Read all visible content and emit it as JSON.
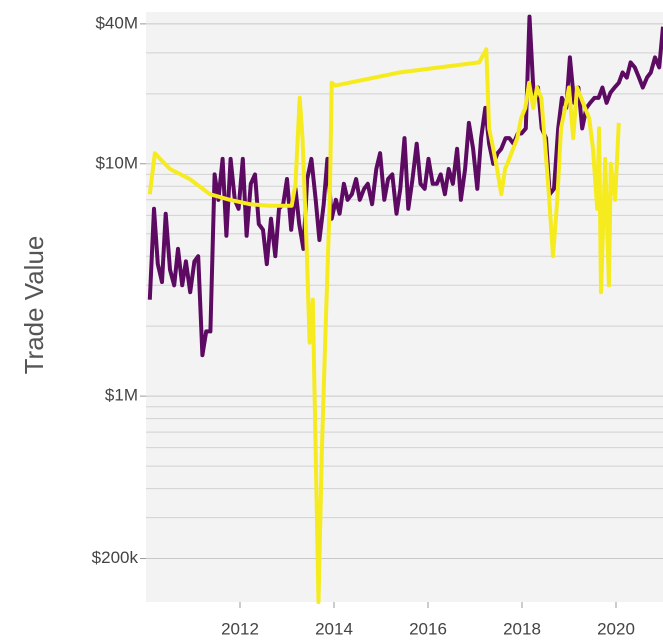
{
  "chart_data": {
    "type": "line",
    "y_label": "Trade Value",
    "log_scale": true,
    "grid": true,
    "xlim": [
      2010,
      2021
    ],
    "xticks": [
      2012,
      2014,
      2016,
      2018,
      2020
    ],
    "ylim": [
      130000,
      45000000
    ],
    "yticks": [
      {
        "value": 200000,
        "label": "$200k"
      },
      {
        "value": 1000000,
        "label": "$1M"
      },
      {
        "value": 10000000,
        "label": "$10M"
      },
      {
        "value": 40000000,
        "label": "$40M"
      }
    ],
    "minor_yticks": [
      300000,
      400000,
      500000,
      600000,
      700000,
      800000,
      900000,
      2000000,
      3000000,
      4000000,
      5000000,
      6000000,
      7000000,
      8000000,
      9000000,
      20000000,
      30000000
    ],
    "series": [
      {
        "color": "#5c0a62",
        "x": [
          2010.08,
          2010.17,
          2010.25,
          2010.34,
          2010.42,
          2010.51,
          2010.6,
          2010.68,
          2010.77,
          2010.85,
          2010.94,
          2011.03,
          2011.11,
          2011.2,
          2011.28,
          2011.37,
          2011.46,
          2011.54,
          2011.63,
          2011.71,
          2011.8,
          2011.89,
          2011.97,
          2012.06,
          2012.14,
          2012.23,
          2012.32,
          2012.4,
          2012.49,
          2012.57,
          2012.66,
          2012.75,
          2012.83,
          2012.92,
          2013.0,
          2013.09,
          2013.18,
          2013.26,
          2013.35,
          2013.43,
          2013.52,
          2013.61,
          2013.69,
          2013.78,
          2013.86,
          2013.95,
          2014.04,
          2014.12,
          2014.21,
          2014.29,
          2014.38,
          2014.47,
          2014.55,
          2014.64,
          2014.72,
          2014.81,
          2014.9,
          2014.98,
          2015.07,
          2015.15,
          2015.24,
          2015.33,
          2015.41,
          2015.5,
          2015.58,
          2015.67,
          2015.76,
          2015.84,
          2015.93,
          2016.01,
          2016.1,
          2016.19,
          2016.27,
          2016.36,
          2016.44,
          2016.53,
          2016.62,
          2016.7,
          2016.79,
          2016.87,
          2016.96,
          2017.05,
          2017.13,
          2017.22,
          2017.3,
          2017.39,
          2017.48,
          2017.56,
          2017.65,
          2017.73,
          2017.82,
          2017.91,
          2017.99,
          2018.08,
          2018.16,
          2018.25,
          2018.34,
          2018.42,
          2018.51,
          2018.59,
          2018.68,
          2018.77,
          2018.85,
          2018.94,
          2019.02,
          2019.11,
          2019.2,
          2019.28,
          2019.37,
          2019.45,
          2019.54,
          2019.63,
          2019.71,
          2019.8,
          2019.88,
          2019.97,
          2020.06,
          2020.14,
          2020.23,
          2020.31,
          2020.4,
          2020.49,
          2020.57,
          2020.66,
          2020.74,
          2020.83,
          2020.92,
          2021.0
        ],
        "values": [
          2600000,
          6400000,
          3700000,
          3100000,
          6100000,
          3500000,
          3000000,
          4300000,
          3000000,
          3800000,
          2800000,
          3800000,
          4000000,
          1500000,
          1900000,
          1900000,
          9000000,
          7000000,
          10500000,
          4900000,
          10500000,
          7000000,
          6400000,
          10500000,
          4900000,
          8200000,
          9000000,
          5500000,
          5200000,
          3700000,
          5800000,
          4000000,
          6400000,
          6700000,
          8600000,
          5200000,
          7800000,
          5500000,
          4300000,
          8600000,
          10500000,
          7000000,
          4700000,
          6700000,
          10500000,
          5800000,
          7000000,
          6100000,
          8200000,
          7000000,
          7400000,
          8600000,
          7000000,
          7800000,
          8200000,
          6700000,
          9500000,
          11100000,
          7000000,
          8600000,
          9000000,
          6100000,
          7800000,
          12900000,
          6400000,
          8600000,
          12200000,
          8200000,
          7800000,
          10500000,
          8200000,
          8200000,
          9000000,
          7400000,
          9500000,
          8200000,
          11600000,
          7000000,
          9500000,
          15000000,
          11600000,
          7800000,
          12900000,
          17400000,
          12200000,
          10000000,
          11100000,
          11600000,
          12900000,
          12900000,
          12200000,
          13500000,
          13500000,
          14200000,
          43000000,
          19200000,
          21300000,
          14200000,
          12900000,
          7400000,
          7800000,
          14200000,
          19200000,
          17400000,
          28700000,
          18300000,
          21300000,
          14200000,
          17400000,
          18300000,
          19200000,
          19200000,
          21300000,
          18300000,
          20200000,
          21300000,
          22300000,
          24700000,
          23500000,
          27300000,
          26000000,
          23500000,
          21300000,
          23500000,
          24700000,
          28700000,
          26000000,
          38900000
        ]
      },
      {
        "color": "#f5eb1e",
        "x": [
          2010.08,
          2010.19,
          2010.3,
          2010.51,
          2010.93,
          2011.36,
          2011.78,
          2012.21,
          2012.63,
          2013.1,
          2013.18,
          2013.27,
          2013.33,
          2013.42,
          2013.48,
          2013.55,
          2013.61,
          2013.67,
          2013.74,
          2013.82,
          2013.91,
          2013.95,
          2014.03,
          2015.39,
          2017.09,
          2017.24,
          2017.3,
          2017.39,
          2017.47,
          2017.56,
          2017.64,
          2017.73,
          2017.81,
          2017.9,
          2017.98,
          2018.07,
          2018.15,
          2018.24,
          2018.32,
          2018.41,
          2018.49,
          2018.58,
          2018.66,
          2018.75,
          2018.83,
          2018.92,
          2019.0,
          2019.09,
          2019.17,
          2019.26,
          2019.34,
          2019.43,
          2019.51,
          2019.6,
          2019.64,
          2019.68,
          2019.77,
          2019.85,
          2019.89,
          2019.98,
          2020.06
        ],
        "values": [
          7400000,
          11100000,
          10500000,
          9500000,
          8600000,
          7400000,
          7000000,
          6700000,
          6600000,
          6600000,
          8200000,
          19200000,
          12900000,
          4300000,
          1700000,
          2600000,
          570000,
          130000,
          570000,
          1900000,
          7000000,
          22300000,
          21700000,
          24700000,
          27300000,
          31100000,
          14200000,
          11600000,
          9500000,
          7400000,
          9500000,
          10500000,
          11600000,
          12900000,
          15700000,
          17400000,
          22300000,
          17400000,
          21300000,
          19200000,
          12200000,
          7000000,
          4000000,
          7000000,
          14200000,
          17400000,
          21300000,
          12900000,
          21300000,
          19200000,
          17400000,
          15700000,
          11600000,
          6400000,
          14200000,
          2800000,
          10500000,
          3000000,
          10000000,
          7000000,
          15000000
        ]
      }
    ]
  }
}
